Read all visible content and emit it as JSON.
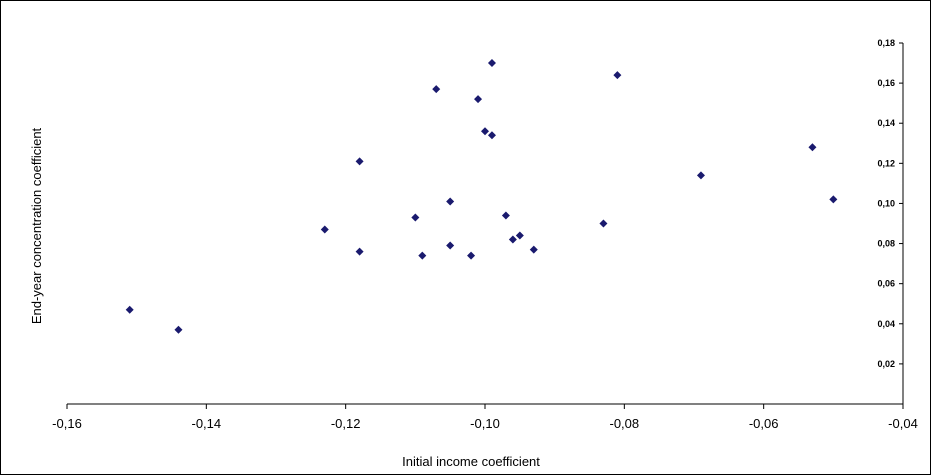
{
  "chart_data": {
    "type": "scatter",
    "title": "",
    "xlabel": "Initial income coefficient",
    "ylabel": "End-year concentration coefficient",
    "xlim": [
      -0.16,
      -0.04
    ],
    "ylim": [
      0,
      0.18
    ],
    "x_ticks": [
      -0.16,
      -0.14,
      -0.12,
      -0.1,
      -0.08,
      -0.06,
      -0.04
    ],
    "x_tick_labels": [
      "-0,16",
      "-0,14",
      "-0,12",
      "-0,10",
      "-0,08",
      "-0,06",
      "-0,04"
    ],
    "y_ticks": [
      0.02,
      0.04,
      0.06,
      0.08,
      0.1,
      0.12,
      0.14,
      0.16,
      0.18
    ],
    "y_tick_labels": [
      "0,02",
      "0,04",
      "0,06",
      "0,08",
      "0,10",
      "0,12",
      "0,14",
      "0,16",
      "0,18"
    ],
    "y_axis_side": "right",
    "grid": false,
    "legend": "none",
    "marker": "diamond",
    "marker_color": "#1a1a6e",
    "series": [
      {
        "points": [
          {
            "x": -0.151,
            "y": 0.047
          },
          {
            "x": -0.144,
            "y": 0.037
          },
          {
            "x": -0.123,
            "y": 0.087
          },
          {
            "x": -0.118,
            "y": 0.121
          },
          {
            "x": -0.118,
            "y": 0.076
          },
          {
            "x": -0.11,
            "y": 0.093
          },
          {
            "x": -0.109,
            "y": 0.074
          },
          {
            "x": -0.107,
            "y": 0.157
          },
          {
            "x": -0.105,
            "y": 0.101
          },
          {
            "x": -0.105,
            "y": 0.079
          },
          {
            "x": -0.102,
            "y": 0.074
          },
          {
            "x": -0.101,
            "y": 0.152
          },
          {
            "x": -0.1,
            "y": 0.136
          },
          {
            "x": -0.099,
            "y": 0.134
          },
          {
            "x": -0.099,
            "y": 0.17
          },
          {
            "x": -0.097,
            "y": 0.094
          },
          {
            "x": -0.096,
            "y": 0.082
          },
          {
            "x": -0.095,
            "y": 0.084
          },
          {
            "x": -0.093,
            "y": 0.077
          },
          {
            "x": -0.083,
            "y": 0.09
          },
          {
            "x": -0.081,
            "y": 0.164
          },
          {
            "x": -0.069,
            "y": 0.114
          },
          {
            "x": -0.053,
            "y": 0.128
          },
          {
            "x": -0.05,
            "y": 0.102
          }
        ]
      }
    ]
  }
}
